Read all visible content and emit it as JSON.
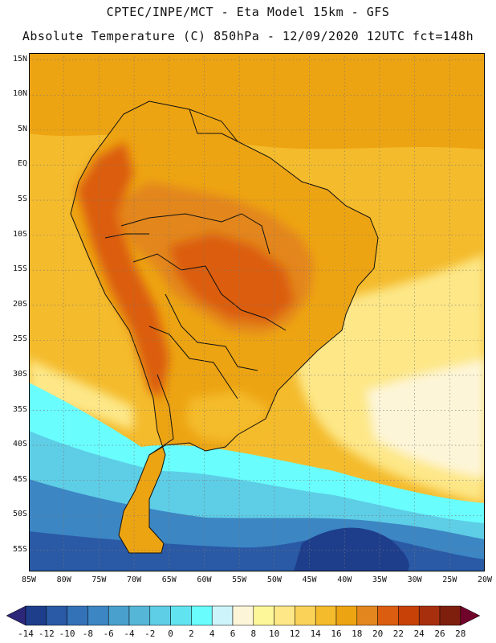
{
  "header": {
    "line1": "CPTEC/INPE/MCT -  Eta Model 15km - GFS",
    "line2": "Absolute Temperature (C) 850hPa - 12/09/2020 12UTC fct=148h"
  },
  "map": {
    "lon_min": -85,
    "lon_max": -20,
    "lat_min": -58,
    "lat_max": 16,
    "lat_labels": [
      "15N",
      "10N",
      "5N",
      "EQ",
      "5S",
      "10S",
      "15S",
      "20S",
      "25S",
      "30S",
      "35S",
      "40S",
      "45S",
      "50S",
      "55S"
    ],
    "lat_values": [
      15,
      10,
      5,
      0,
      -5,
      -10,
      -15,
      -20,
      -25,
      -30,
      -35,
      -40,
      -45,
      -50,
      -55
    ],
    "lon_labels": [
      "85W",
      "80W",
      "75W",
      "70W",
      "65W",
      "60W",
      "55W",
      "50W",
      "45W",
      "40W",
      "35W",
      "30W",
      "25W",
      "20W"
    ],
    "lon_values": [
      -85,
      -80,
      -75,
      -70,
      -65,
      -60,
      -55,
      -50,
      -45,
      -40,
      -35,
      -30,
      -25,
      -20
    ]
  },
  "colorbar": {
    "labels": [
      "-14",
      "-12",
      "-10",
      "-8",
      "-6",
      "-4",
      "-2",
      "0",
      "2",
      "4",
      "6",
      "8",
      "10",
      "12",
      "14",
      "16",
      "18",
      "20",
      "22",
      "24",
      "26",
      "28"
    ],
    "colors": [
      "#1e3e8c",
      "#2a5aa5",
      "#3472b8",
      "#3c86c3",
      "#4aa0cc",
      "#55b6d8",
      "#5ecde6",
      "#62e4f0",
      "#69fdfd",
      "#cdf4fa",
      "#fdf5d8",
      "#fdf79a",
      "#fde787",
      "#fad257",
      "#f4bb2c",
      "#eda412",
      "#e3861d",
      "#db5d0f",
      "#c84208",
      "#a82f0e",
      "#7e1f0e"
    ],
    "under_color": "#2c2778",
    "over_color": "#70032a"
  }
}
